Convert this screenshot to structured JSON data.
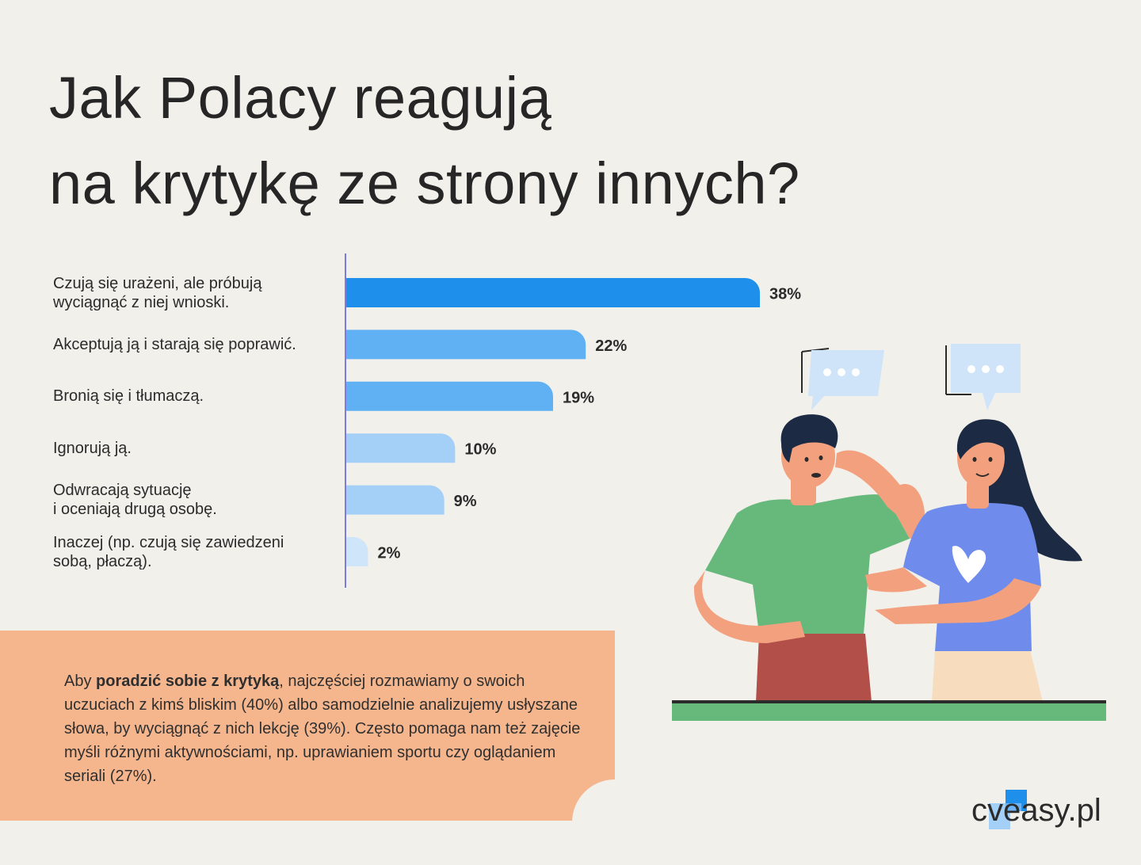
{
  "title_line1": "Jak Polacy reagują",
  "title_line2": "na krytykę ze strony innych?",
  "chart_data": {
    "type": "bar",
    "orientation": "horizontal",
    "categories": [
      "Czują się urażeni, ale próbują wyciągnąć z niej wnioski.",
      "Akceptują ją i starają się poprawić.",
      "Bronią się i tłumaczą.",
      "Ignorują ją.",
      "Odwracają sytuację i oceniają drugą osobę.",
      "Inaczej (np. czują się zawiedzeni sobą, płaczą)."
    ],
    "label_lines": [
      [
        "Czują się urażeni, ale próbują",
        "wyciągnąć z niej wnioski."
      ],
      [
        "Akceptują ją i starają się poprawić."
      ],
      [
        "Bronią się i tłumaczą."
      ],
      [
        "Ignorują ją."
      ],
      [
        "Odwracają sytuację",
        "i oceniają drugą osobę."
      ],
      [
        "Inaczej (np. czują się zawiedzeni",
        "sobą, płaczą)."
      ]
    ],
    "values": [
      38,
      22,
      19,
      10,
      9,
      2
    ],
    "value_labels": [
      "38%",
      "22%",
      "19%",
      "10%",
      "9%",
      "2%"
    ],
    "colors": [
      "#1e90ec",
      "#5fb1f4",
      "#5fb1f4",
      "#a4d0f7",
      "#a4d0f7",
      "#cfe5f9"
    ],
    "axis_color": "#7b7be0",
    "xlim": [
      0,
      38
    ],
    "grid": false,
    "legend": "none"
  },
  "tip": {
    "before": "Aby ",
    "bold": "poradzić sobie z krytyką",
    "after": ", najczęściej rozmawiamy o swoich uczuciach z kimś bliskim (40%) albo samodzielnie analizujemy usłyszane słowa, by wyciągnąć z nich lekcję (39%). Często pomaga nam też zajęcie myśli różnymi aktywnościami, np. uprawianiem sportu czy oglądaniem seriali (27%)."
  },
  "logo_text": "cveasy.pl",
  "colors": {
    "background": "#f2f0eb",
    "tip_card": "#f5b68e",
    "accent_blue": "#1e90ec",
    "ground": "#67b87b"
  }
}
